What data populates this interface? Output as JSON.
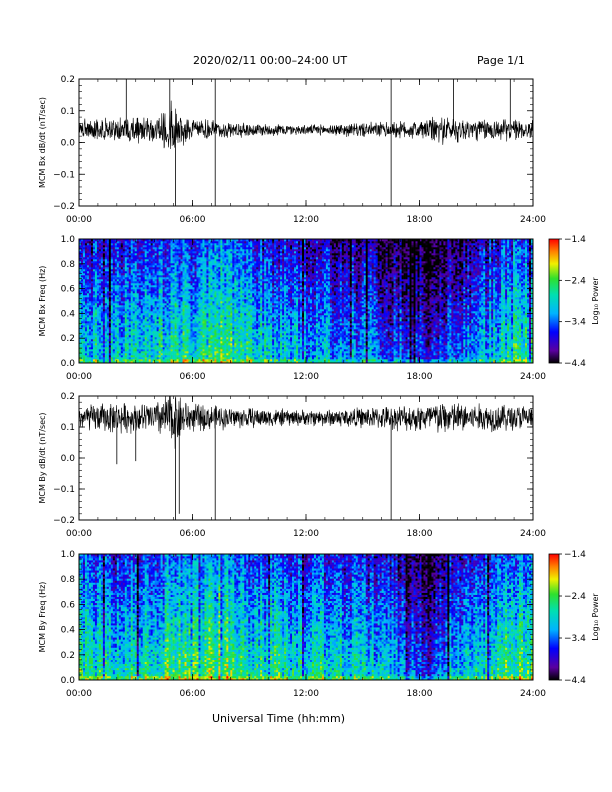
{
  "header": {
    "title": "2020/02/11  00:00–24:00 UT",
    "page": "Page 1/1"
  },
  "xlabel": "Universal Time (hh:mm)",
  "chart_data": [
    {
      "type": "line",
      "name": "MCM Bx dB/dt",
      "ylabel": "MCM Bx dB/dt (nT/sec)",
      "xlim": [
        0,
        24
      ],
      "ylim": [
        -0.2,
        0.2
      ],
      "yticks": [
        0.2,
        0.1,
        0.0,
        -0.1,
        -0.2
      ],
      "ytick_labels": [
        "0.2",
        "0.1",
        "0.0",
        "−0.1",
        "−0.2"
      ],
      "xticks": [
        0,
        6,
        12,
        18,
        24
      ],
      "xtick_labels": [
        "00:00",
        "06:00",
        "12:00",
        "18:00",
        "24:00"
      ],
      "baseline": 0.04,
      "envelope": [
        [
          0.0,
          0.03
        ],
        [
          1.0,
          0.035
        ],
        [
          2.0,
          0.04
        ],
        [
          3.0,
          0.04
        ],
        [
          4.0,
          0.045
        ],
        [
          4.5,
          0.06
        ],
        [
          5.0,
          0.09
        ],
        [
          5.5,
          0.05
        ],
        [
          6.0,
          0.035
        ],
        [
          7.0,
          0.03
        ],
        [
          8.0,
          0.025
        ],
        [
          10.0,
          0.02
        ],
        [
          12.0,
          0.015
        ],
        [
          14.0,
          0.02
        ],
        [
          16.0,
          0.025
        ],
        [
          18.0,
          0.03
        ],
        [
          19.0,
          0.045
        ],
        [
          20.0,
          0.04
        ],
        [
          21.0,
          0.035
        ],
        [
          22.0,
          0.035
        ],
        [
          24.0,
          0.03
        ]
      ],
      "spikes": [
        [
          2.5,
          0.2
        ],
        [
          4.8,
          0.2
        ],
        [
          5.1,
          -0.2
        ],
        [
          7.2,
          0.2
        ],
        [
          7.2,
          -0.2
        ],
        [
          16.5,
          0.2
        ],
        [
          16.5,
          -0.2
        ],
        [
          19.8,
          0.2
        ],
        [
          22.8,
          0.2
        ]
      ]
    },
    {
      "type": "heatmap",
      "name": "MCM Bx Freq",
      "ylabel": "MCM Bx Freq (Hz)",
      "xlim": [
        0,
        24
      ],
      "ylim": [
        0,
        1.0
      ],
      "yticks": [
        0.0,
        0.2,
        0.4,
        0.6,
        0.8,
        1.0
      ],
      "ytick_labels": [
        "0.0",
        "0.2",
        "0.4",
        "0.6",
        "0.8",
        "1.0"
      ],
      "xticks": [
        0,
        6,
        12,
        18,
        24
      ],
      "xtick_labels": [
        "00:00",
        "06:00",
        "12:00",
        "18:00",
        "24:00"
      ],
      "colorbar": {
        "label": "Log₁₀ Power",
        "min": -4.4,
        "max": -1.4,
        "ticks": [
          "-1.4",
          "-2.4",
          "-3.4",
          "-4.4"
        ]
      },
      "profile": [
        [
          0,
          -3.3
        ],
        [
          2,
          -3.4
        ],
        [
          4,
          -3.3
        ],
        [
          5,
          -3.0
        ],
        [
          6,
          -3.2
        ],
        [
          7.5,
          -2.9
        ],
        [
          9,
          -3.3
        ],
        [
          12,
          -3.5
        ],
        [
          15,
          -3.6
        ],
        [
          17,
          -3.9
        ],
        [
          18.5,
          -4.2
        ],
        [
          20,
          -3.7
        ],
        [
          22,
          -3.4
        ],
        [
          23,
          -3.0
        ],
        [
          24,
          -3.3
        ]
      ]
    },
    {
      "type": "line",
      "name": "MCM By dB/dt",
      "ylabel": "MCM By dB/dt (nT/sec)",
      "xlim": [
        0,
        24
      ],
      "ylim": [
        -0.2,
        0.2
      ],
      "yticks": [
        0.2,
        0.1,
        0.0,
        -0.1,
        -0.2
      ],
      "ytick_labels": [
        "0.2",
        "0.1",
        "0.0",
        "−0.1",
        "−0.2"
      ],
      "xticks": [
        0,
        6,
        12,
        18,
        24
      ],
      "xtick_labels": [
        "00:00",
        "06:00",
        "12:00",
        "18:00",
        "24:00"
      ],
      "baseline": 0.13,
      "envelope": [
        [
          0.0,
          0.04
        ],
        [
          1.0,
          0.045
        ],
        [
          2.0,
          0.05
        ],
        [
          3.0,
          0.045
        ],
        [
          4.0,
          0.05
        ],
        [
          4.5,
          0.07
        ],
        [
          5.0,
          0.1
        ],
        [
          5.5,
          0.06
        ],
        [
          6.0,
          0.045
        ],
        [
          7.0,
          0.04
        ],
        [
          8.0,
          0.035
        ],
        [
          10.0,
          0.03
        ],
        [
          12.0,
          0.025
        ],
        [
          14.0,
          0.03
        ],
        [
          16.0,
          0.035
        ],
        [
          18.0,
          0.045
        ],
        [
          19.0,
          0.055
        ],
        [
          20.0,
          0.05
        ],
        [
          21.0,
          0.045
        ],
        [
          22.0,
          0.045
        ],
        [
          24.0,
          0.04
        ]
      ],
      "spikes": [
        [
          5.1,
          -0.2
        ],
        [
          5.3,
          -0.18
        ],
        [
          7.2,
          -0.2
        ],
        [
          16.5,
          -0.2
        ],
        [
          2.0,
          -0.02
        ],
        [
          3.0,
          -0.01
        ]
      ]
    },
    {
      "type": "heatmap",
      "name": "MCM By Freq",
      "ylabel": "MCM By Freq (Hz)",
      "xlim": [
        0,
        24
      ],
      "ylim": [
        0,
        1.0
      ],
      "yticks": [
        0.0,
        0.2,
        0.4,
        0.6,
        0.8,
        1.0
      ],
      "ytick_labels": [
        "0.0",
        "0.2",
        "0.4",
        "0.6",
        "0.8",
        "1.0"
      ],
      "xticks": [
        0,
        6,
        12,
        18,
        24
      ],
      "xtick_labels": [
        "00:00",
        "06:00",
        "12:00",
        "18:00",
        "24:00"
      ],
      "colorbar": {
        "label": "Log₁₀ Power",
        "min": -4.4,
        "max": -1.4,
        "ticks": [
          "-1.4",
          "-2.4",
          "-3.4",
          "-4.4"
        ]
      },
      "profile": [
        [
          0,
          -3.1
        ],
        [
          2,
          -3.2
        ],
        [
          4,
          -3.1
        ],
        [
          5,
          -2.8
        ],
        [
          6,
          -3.0
        ],
        [
          7.5,
          -2.7
        ],
        [
          9,
          -3.1
        ],
        [
          12,
          -3.2
        ],
        [
          15,
          -3.3
        ],
        [
          17,
          -3.6
        ],
        [
          18.5,
          -4.0
        ],
        [
          20,
          -3.4
        ],
        [
          22,
          -3.2
        ],
        [
          23,
          -2.9
        ],
        [
          24,
          -3.1
        ]
      ]
    }
  ]
}
